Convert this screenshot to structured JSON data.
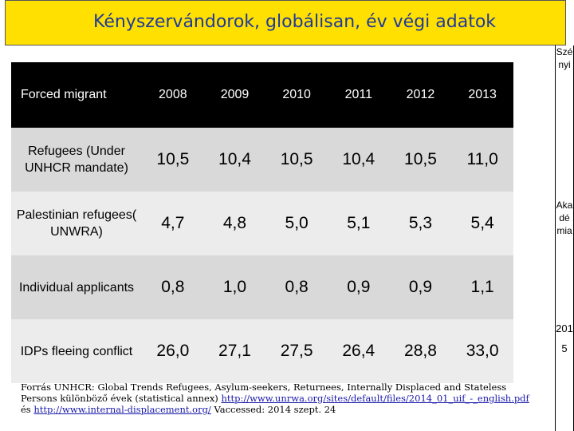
{
  "title": "Kényszervándorok, globálisan, év végi adatok",
  "sidebar": {
    "name": "Szényi",
    "institution": "Akadémia",
    "year": "2015"
  },
  "table": {
    "header": [
      "Forced migrant",
      "2008",
      "2009",
      "2010",
      "2011",
      "2012",
      "2013"
    ],
    "rows": [
      {
        "label": "Refugees (Under UNHCR mandate)",
        "values": [
          "10,5",
          "10,4",
          "10,5",
          "10,4",
          "10,5",
          "11,0"
        ]
      },
      {
        "label": "Palestinian refugees( UNWRA)",
        "values": [
          "4,7",
          "4,8",
          "5,0",
          "5,1",
          "5,3",
          "5,4"
        ]
      },
      {
        "label": "Individual applicants",
        "values": [
          "0,8",
          "1,0",
          "0,8",
          "0,9",
          "0,9",
          "1,1"
        ]
      },
      {
        "label": "IDPs fleeing conflict",
        "values": [
          "26,0",
          "27,1",
          "27,5",
          "26,4",
          "28,8",
          "33,0"
        ]
      }
    ]
  },
  "source": {
    "text": "Forrás UNHCR: Global Trends Refugees, Asylum-seekers, Returnees, Internally Displaced and Stateless Persons különböző évek (statistical annex)",
    "link1": "http://www.unrwa.org/sites/default/files/2014_01_uif_-_english.pdf",
    "and": "és",
    "link2": "http://www.internal-displacement.org/",
    "accessed": "Vaccessed: 2014 szept. 24"
  }
}
